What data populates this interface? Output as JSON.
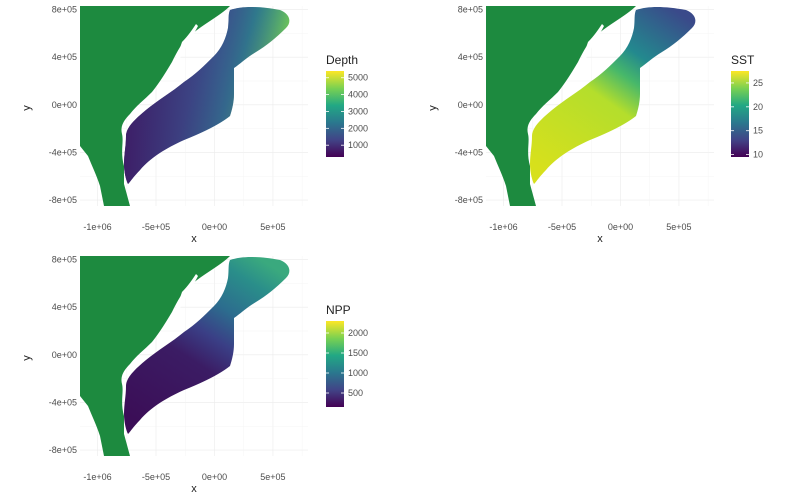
{
  "panels": [
    {
      "id": "depth",
      "legend_title": "Depth",
      "legend_ticks": [
        "5000",
        "4000",
        "3000",
        "2000",
        "1000"
      ],
      "legend_range": [
        300,
        5400
      ],
      "colors": {
        "deep": "#ecd91f",
        "mid": "#2a8a8c",
        "shallow": "#3d1e67",
        "land": "#1d8a3f"
      }
    },
    {
      "id": "sst",
      "legend_title": "SST",
      "legend_ticks": [
        "25",
        "20",
        "15",
        "10"
      ],
      "legend_range": [
        9.5,
        27.5
      ],
      "colors": {
        "warm": "#bfe01f",
        "mid": "#1f9a8a",
        "cool": "#3b4f8c",
        "land": "#1d8a3f"
      }
    },
    {
      "id": "npp",
      "legend_title": "NPP",
      "legend_ticks": [
        "2000",
        "1500",
        "1000",
        "500"
      ],
      "legend_range": [
        150,
        2300
      ],
      "colors": {
        "low": "#3b0e57",
        "mid": "#2c6d8e",
        "high": "#29ad7f",
        "land": "#1d8a3f"
      }
    }
  ],
  "axes": {
    "xlabel": "x",
    "ylabel": "y",
    "xticks": [
      "-1e+06",
      "-5e+05",
      "0e+00",
      "5e+05"
    ],
    "yticks": [
      "8e+05",
      "4e+05",
      "0e+00",
      "-4e+05",
      "-8e+05"
    ]
  },
  "chart_data": [
    {
      "type": "heatmap",
      "title": "",
      "xlabel": "x",
      "ylabel": "y",
      "legend": "Depth",
      "color_scale": "viridis",
      "color_range": [
        300,
        5400
      ],
      "xlim": [
        -1150000,
        800000
      ],
      "ylim": [
        -850000,
        830000
      ],
      "grid": true
    },
    {
      "type": "heatmap",
      "title": "",
      "xlabel": "x",
      "ylabel": "y",
      "legend": "SST",
      "color_scale": "viridis",
      "color_range": [
        9.5,
        27.5
      ],
      "xlim": [
        -1150000,
        800000
      ],
      "ylim": [
        -850000,
        830000
      ],
      "grid": true
    },
    {
      "type": "heatmap",
      "title": "",
      "xlabel": "x",
      "ylabel": "y",
      "legend": "NPP",
      "color_scale": "viridis",
      "color_range": [
        150,
        2300
      ],
      "xlim": [
        -1150000,
        800000
      ],
      "ylim": [
        -850000,
        830000
      ],
      "grid": true
    }
  ]
}
